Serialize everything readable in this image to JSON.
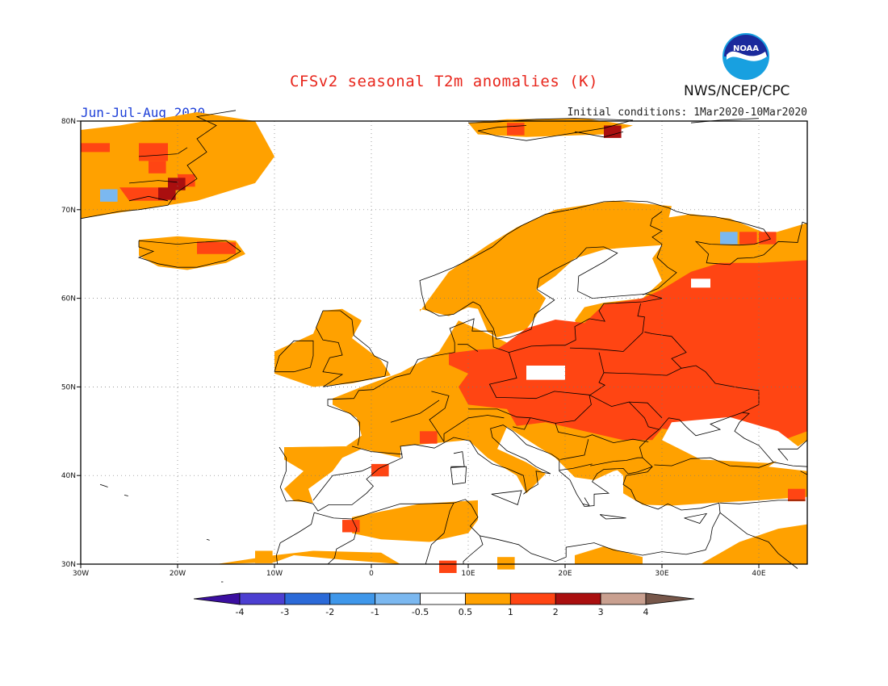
{
  "header": {
    "title": "CFSv2 seasonal T2m anomalies (K)",
    "season": "Jun-Jul-Aug 2020",
    "initial_conditions": "Initial conditions: 1Mar2020-10Mar2020",
    "agency": "NWS/NCEP/CPC",
    "logo_text": "NOAA"
  },
  "axes": {
    "lon_labels": [
      "30W",
      "20W",
      "10W",
      "0",
      "10E",
      "20E",
      "30E",
      "40E"
    ],
    "lat_labels": [
      "30N",
      "40N",
      "50N",
      "60N",
      "70N",
      "80N"
    ],
    "lon_range": [
      -30,
      45
    ],
    "lat_range": [
      30,
      80
    ]
  },
  "colorbar": {
    "labels": [
      "-4",
      "-3",
      "-2",
      "-1",
      "-0.5",
      "0.5",
      "1",
      "2",
      "3",
      "4"
    ],
    "colors": [
      "#3b0fa0",
      "#4c3fd1",
      "#2b6ad8",
      "#3f97ea",
      "#7bb8f0",
      "#ffffff",
      "#ffa100",
      "#ff4513",
      "#aa0f0f",
      "#c9a090",
      "#77574a"
    ]
  },
  "anomaly_classes": {
    "light": "#ffa100",
    "strong": "#ff4513",
    "very_strong": "#aa0f0f",
    "cold": "#7bb8f0"
  }
}
